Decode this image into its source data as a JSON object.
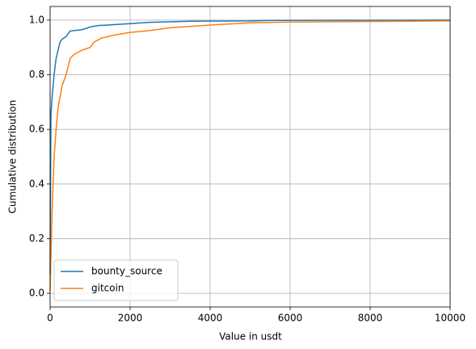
{
  "chart_data": {
    "type": "line",
    "xlabel": "Value in usdt",
    "ylabel": "Cumulative distribution",
    "xlim": [
      0,
      10000
    ],
    "ylim": [
      -0.05,
      1.05
    ],
    "xticks": [
      0,
      2000,
      4000,
      6000,
      8000,
      10000
    ],
    "yticks": [
      {
        "value": 0,
        "label": "0.0"
      },
      0.2,
      0.4,
      0.6,
      0.8,
      {
        "value": 1,
        "label": "1.0"
      }
    ],
    "grid": true,
    "legend": "lower left",
    "series": [
      {
        "name": "bounty_source",
        "color": "#1f77b4",
        "x": [
          0,
          20,
          50,
          100,
          150,
          200,
          250,
          300,
          400,
          500,
          800,
          1000,
          1200,
          2000,
          2500,
          3500,
          5000,
          5500,
          10000
        ],
        "values": [
          0.07,
          0.65,
          0.72,
          0.8,
          0.86,
          0.89,
          0.92,
          0.93,
          0.94,
          0.96,
          0.965,
          0.975,
          0.98,
          0.987,
          0.992,
          0.996,
          0.997,
          0.999,
          1.0
        ]
      },
      {
        "name": "gitcoin",
        "color": "#ff7f0e",
        "x": [
          0,
          50,
          100,
          150,
          200,
          250,
          300,
          400,
          500,
          600,
          800,
          1000,
          1100,
          1300,
          1600,
          2000,
          2500,
          3000,
          4000,
          5000,
          6000,
          8000,
          10000
        ],
        "values": [
          0.01,
          0.3,
          0.5,
          0.6,
          0.68,
          0.72,
          0.76,
          0.8,
          0.86,
          0.875,
          0.89,
          0.9,
          0.92,
          0.935,
          0.945,
          0.955,
          0.962,
          0.972,
          0.982,
          0.99,
          0.993,
          0.995,
          0.997
        ]
      }
    ]
  }
}
